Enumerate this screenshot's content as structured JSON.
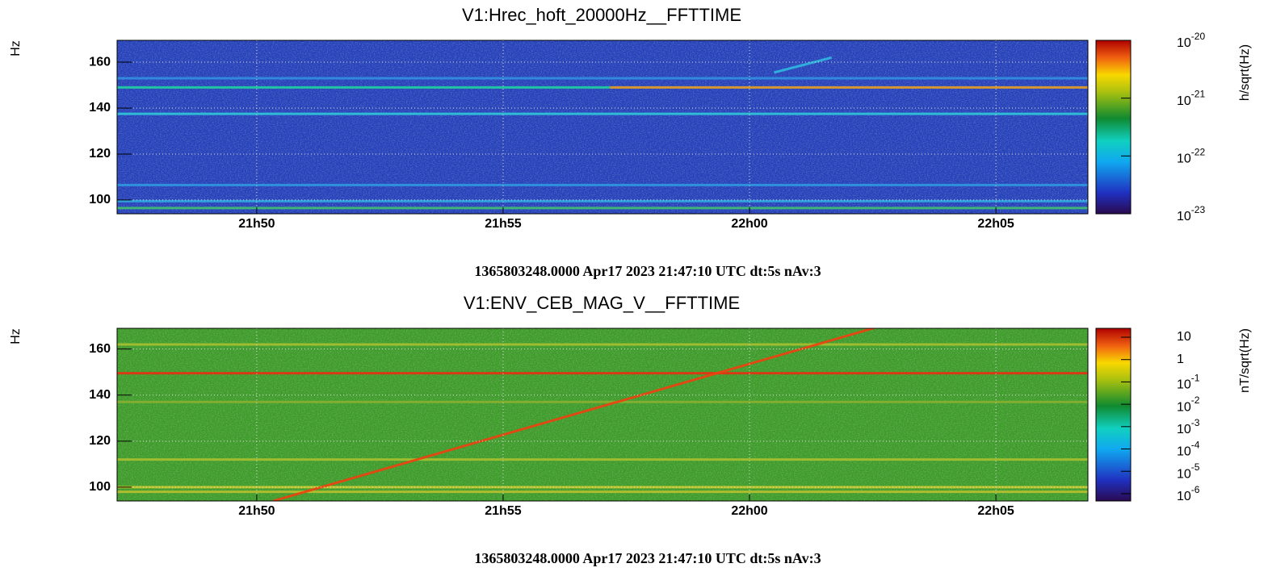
{
  "chart_data": [
    {
      "type": "spectrogram",
      "title": "V1:Hrec_hoft_20000Hz__FFTTIME",
      "ylabel": "Hz",
      "colorbar_label": "h/sqrt(Hz)",
      "footer": "1365803248.0000 Apr17 2023 21:47:10 UTC dt:5s nAv:3",
      "xlim": [
        "21:47:10",
        "22:06:52"
      ],
      "xticks": [
        {
          "value": "21:50",
          "label": "21h50"
        },
        {
          "value": "21:55",
          "label": "21h55"
        },
        {
          "value": "22:00",
          "label": "22h00"
        },
        {
          "value": "22:05",
          "label": "22h05"
        }
      ],
      "ylim": [
        94,
        169.5
      ],
      "yticks": [
        100,
        120,
        140,
        160
      ],
      "grid": true,
      "clim": [
        1e-23,
        1e-20
      ],
      "clog": true,
      "cticks": [
        {
          "value": 1e-20,
          "label": "10",
          "exponent": "-20"
        },
        {
          "value": 1e-21,
          "label": "10",
          "exponent": "-21"
        },
        {
          "value": 1e-22,
          "label": "10",
          "exponent": "-22"
        },
        {
          "value": 1e-23,
          "label": "10",
          "exponent": "-23"
        }
      ],
      "background": "#2440b8",
      "tracks": [
        {
          "x": [
            "21:47:10",
            "21:57:10"
          ],
          "y": [
            149,
            149
          ],
          "color": "#20d0a0"
        },
        {
          "x": [
            "21:57:10",
            "22:06:52"
          ],
          "y": [
            149,
            149
          ],
          "color": "#e8a020"
        },
        {
          "x": [
            "21:47:10",
            "22:06:52"
          ],
          "y": [
            137.5,
            137.5
          ],
          "color": "#30c8d8"
        },
        {
          "x": [
            "21:47:10",
            "22:06:52"
          ],
          "y": [
            153,
            153
          ],
          "color": "#3090e0"
        },
        {
          "x": [
            "21:47:10",
            "22:06:52"
          ],
          "y": [
            106.5,
            106.5
          ],
          "color": "#3098e0"
        },
        {
          "x": [
            "21:47:10",
            "22:06:52"
          ],
          "y": [
            99.5,
            99.5
          ],
          "color": "#30a8e0"
        },
        {
          "x": [
            "21:47:10",
            "22:06:52"
          ],
          "y": [
            96.5,
            96.5
          ],
          "color": "#40c070"
        },
        {
          "x": [
            "22:00:30",
            "22:01:40"
          ],
          "y": [
            155.5,
            162
          ],
          "color": "#30b8e0"
        }
      ]
    },
    {
      "type": "spectrogram",
      "title": "V1:ENV_CEB_MAG_V__FFTTIME",
      "ylabel": "Hz",
      "colorbar_label": "nT/sqrt(Hz)",
      "footer": "1365803248.0000 Apr17 2023 21:47:10 UTC dt:5s nAv:3",
      "xlim": [
        "21:47:10",
        "22:06:52"
      ],
      "xticks": [
        {
          "value": "21:50",
          "label": "21h50"
        },
        {
          "value": "21:55",
          "label": "21h55"
        },
        {
          "value": "22:00",
          "label": "22h00"
        },
        {
          "value": "22:05",
          "label": "22h05"
        }
      ],
      "ylim": [
        94,
        169
      ],
      "yticks": [
        100,
        120,
        140,
        160
      ],
      "grid": true,
      "clim": [
        4.7e-07,
        25
      ],
      "clog": true,
      "cticks": [
        10,
        1,
        {
          "value": 0.1,
          "label": "10",
          "exponent": "-1"
        },
        {
          "value": 0.01,
          "label": "10",
          "exponent": "-2"
        },
        {
          "value": 0.001,
          "label": "10",
          "exponent": "-3"
        },
        {
          "value": 0.0001,
          "label": "10",
          "exponent": "-4"
        },
        {
          "value": 1e-05,
          "label": "10",
          "exponent": "-5"
        },
        {
          "value": 1e-06,
          "label": "10",
          "exponent": "-6"
        }
      ],
      "background": "#3c9a28",
      "tracks": [
        {
          "x": [
            "21:47:10",
            "22:06:52"
          ],
          "y": [
            149.5,
            149.5
          ],
          "color": "#e83010"
        },
        {
          "x": [
            "21:47:10",
            "22:06:52"
          ],
          "y": [
            162,
            162
          ],
          "color": "#a8c030"
        },
        {
          "x": [
            "21:47:10",
            "22:06:52"
          ],
          "y": [
            137,
            137
          ],
          "color": "#88b030"
        },
        {
          "x": [
            "21:47:10",
            "22:06:52"
          ],
          "y": [
            112,
            112
          ],
          "color": "#a8c030"
        },
        {
          "x": [
            "21:47:10",
            "22:06:52"
          ],
          "y": [
            100,
            100
          ],
          "color": "#c8c828"
        },
        {
          "x": [
            "21:47:10",
            "22:06:52"
          ],
          "y": [
            98,
            98
          ],
          "color": "#b8c030"
        },
        {
          "x": [
            "21:50:20",
            "22:02:40"
          ],
          "y": [
            94,
            170
          ],
          "color": "#f04010"
        }
      ]
    }
  ]
}
